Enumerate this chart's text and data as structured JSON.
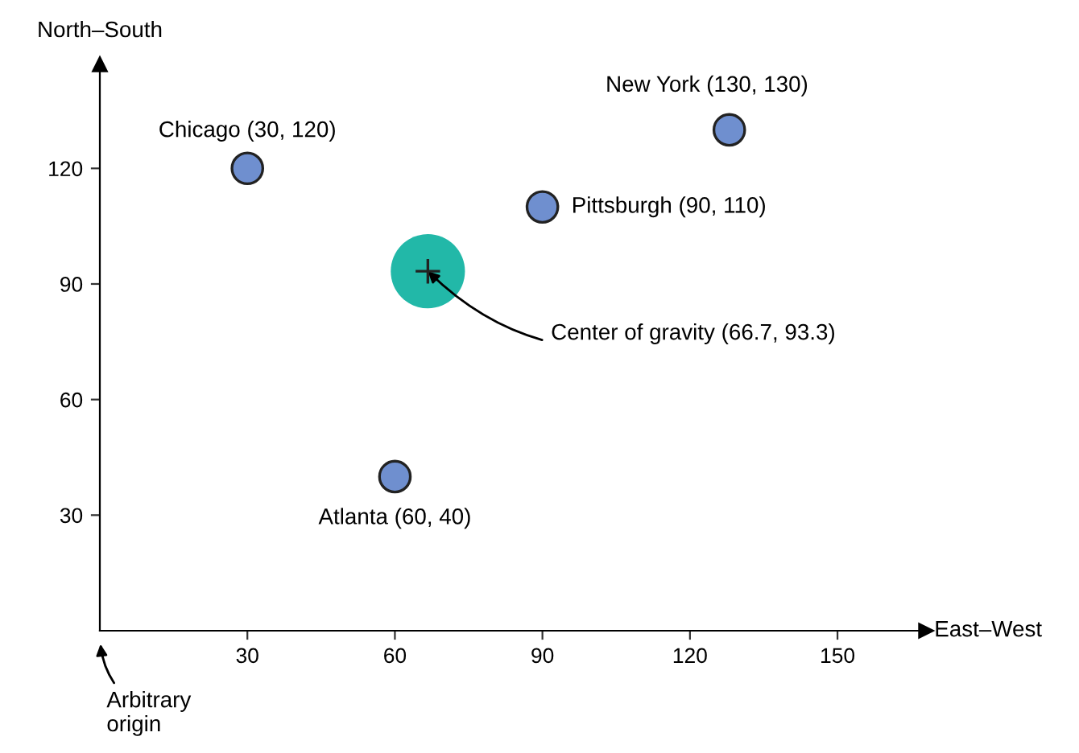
{
  "chart_data": {
    "type": "scatter",
    "xlabel": "East–West",
    "ylabel": "North–South",
    "xlim": [
      0,
      168
    ],
    "ylim": [
      0,
      147
    ],
    "xticks": [
      30,
      60,
      90,
      120,
      150
    ],
    "yticks": [
      30,
      60,
      90,
      120
    ],
    "grid": false,
    "marker": "circle",
    "series": [
      {
        "color": "#6f8fcf",
        "x": [
          30,
          128,
          90,
          60
        ],
        "values": [
          120,
          130,
          110,
          40
        ]
      },
      {
        "color": "#22b8a8",
        "x": [
          66.7
        ],
        "values": [
          93.3
        ]
      }
    ],
    "annotations": [
      {
        "text": "Chicago (30, 120)",
        "x": 30,
        "y": 120
      },
      {
        "text": "New York (130, 130)",
        "x": 128,
        "y": 130
      },
      {
        "text": "Pittsburgh (90, 110)",
        "x": 90,
        "y": 110
      },
      {
        "text": "Atlanta (60, 40)",
        "x": 60,
        "y": 40
      },
      {
        "text": "Center of gravity (66.7, 93.3)",
        "x": 66.7,
        "y": 93.3
      },
      "Arbitrary\norigin"
    ]
  }
}
